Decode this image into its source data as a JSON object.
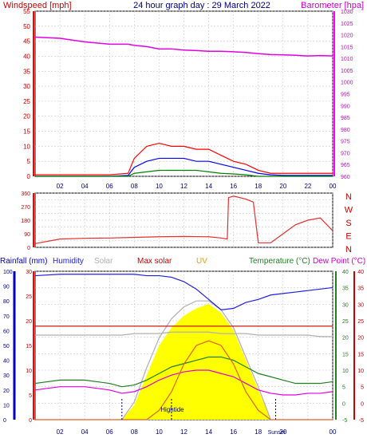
{
  "header": {
    "title": "24 hour graph day : 29 March 2022",
    "left_label": "Windspeed [mph]",
    "right_label": "Barometer [hpa]"
  },
  "colors": {
    "wind": "#ff0000",
    "gust": "#ff0000",
    "avgwind": "#0000ff",
    "lull": "#008000",
    "baro": "#e000e0",
    "direction": "#e03030",
    "rain": "#0000c0",
    "humidity": "#2020e0",
    "solar": "#b0b0b0",
    "maxsolar": "#cc0000",
    "uv": "#e8a000",
    "uvfill": "#ffff00",
    "temperature": "#208020",
    "dewpoint": "#e000e0",
    "grid": "#c0c0c0"
  },
  "x_ticks": [
    "02",
    "04",
    "06",
    "08",
    "10",
    "12",
    "14",
    "16",
    "18",
    "20",
    "22",
    "00"
  ],
  "chart_data": [
    {
      "type": "line",
      "name": "wind-barometer",
      "title": "24 hour graph day : 29 March 2022",
      "ylabel_left": "Windspeed [mph]",
      "ylabel_right": "Barometer [hpa]",
      "ylim_left": [
        0,
        55
      ],
      "ylim_right": [
        960,
        1030
      ],
      "left_ticks": [
        0,
        5,
        10,
        15,
        20,
        25,
        30,
        35,
        40,
        45,
        50,
        55
      ],
      "right_ticks": [
        960,
        965,
        970,
        975,
        980,
        985,
        990,
        995,
        1000,
        1005,
        1010,
        1015,
        1020,
        1025,
        1030
      ],
      "x_hours": [
        0,
        2,
        4,
        6,
        7.5,
        8,
        9,
        10,
        11,
        12,
        13,
        14,
        15,
        16,
        17,
        18,
        19,
        20,
        21,
        22,
        23,
        24
      ],
      "series": [
        {
          "key": "baro",
          "axis": "right",
          "values": [
            1019,
            1018.5,
            1017,
            1016,
            1016,
            1015.5,
            1015,
            1014,
            1014,
            1013.5,
            1013.3,
            1013,
            1013,
            1012.8,
            1012.5,
            1012,
            1011.6,
            1011.5,
            1011.3,
            1011,
            1011.2,
            1011
          ]
        },
        {
          "key": "gust",
          "axis": "left",
          "values": [
            0.5,
            0.5,
            0.5,
            0.5,
            1,
            6,
            10,
            11,
            10,
            10,
            9,
            9,
            7,
            5,
            4,
            2,
            1,
            1,
            1,
            1,
            1,
            1
          ]
        },
        {
          "key": "avgwind",
          "axis": "left",
          "values": [
            0,
            0,
            0,
            0,
            0.3,
            3,
            5,
            6,
            6,
            6,
            5,
            5,
            4,
            3,
            2,
            1,
            0.5,
            0.3,
            0.3,
            0.3,
            0.3,
            0.3
          ]
        },
        {
          "key": "lull",
          "axis": "left",
          "values": [
            0,
            0,
            0,
            0,
            0,
            1,
            1.5,
            2,
            2,
            2,
            2,
            1.5,
            1,
            0.8,
            0.5,
            0,
            0,
            0,
            0,
            0,
            0,
            0
          ]
        }
      ]
    },
    {
      "type": "line",
      "name": "wind-direction",
      "ylim": [
        0,
        360
      ],
      "left_ticks": [
        0,
        45,
        90,
        135,
        180,
        225,
        270,
        315,
        360
      ],
      "compass": [
        "N",
        "W",
        "S",
        "E",
        "N"
      ],
      "x_hours": [
        0,
        2,
        4,
        6,
        8,
        10,
        12,
        14,
        15,
        15.5,
        15.6,
        16,
        17,
        17.6,
        18,
        19,
        20,
        21,
        22,
        23,
        24
      ],
      "values": [
        25,
        55,
        60,
        62,
        66,
        70,
        72,
        70,
        62,
        55,
        330,
        340,
        320,
        300,
        30,
        30,
        90,
        150,
        180,
        195,
        110
      ]
    },
    {
      "type": "line",
      "name": "rain-humidity-solar-temperature",
      "legend": [
        "Rainfall (mm)",
        "Humidity",
        "Solar",
        "Max solar",
        "UV",
        "Temperature (°C)",
        "Dew Point (°C)"
      ],
      "humidity_ticks": [
        0,
        10,
        20,
        30,
        40,
        50,
        60,
        70,
        80,
        90,
        100
      ],
      "rain_ticks": [
        0,
        5,
        10,
        15,
        20,
        25,
        30
      ],
      "temp_ticks": [
        -5,
        0,
        5,
        10,
        15,
        20,
        25,
        30,
        35,
        40
      ],
      "ylim_humidity": [
        0,
        100
      ],
      "ylim_temp": [
        -5,
        40
      ],
      "annotations": [
        "Hightide",
        "Sunset"
      ],
      "x_hours": [
        0,
        2,
        4,
        6,
        7,
        8,
        9,
        10,
        11,
        12,
        13,
        14,
        15,
        16,
        17,
        18,
        19,
        20,
        21,
        22,
        23,
        24
      ],
      "series": [
        {
          "key": "humidity",
          "values": [
            97,
            98,
            98,
            98,
            98,
            98,
            97,
            97,
            96,
            93,
            88,
            81,
            74,
            75,
            79,
            81,
            84,
            85,
            86,
            87,
            88,
            89
          ]
        },
        {
          "key": "maxsolar_line",
          "values": [
            63,
            63,
            63,
            63,
            63,
            63,
            63,
            63,
            63,
            63,
            63,
            63,
            63,
            63,
            63,
            63,
            63,
            63,
            63,
            63,
            63,
            63
          ]
        },
        {
          "key": "solar_line",
          "values": [
            57,
            57,
            57,
            57,
            57,
            58,
            58,
            58,
            59,
            59,
            59,
            59,
            58,
            58,
            58,
            57,
            57,
            57,
            57,
            57,
            56,
            56
          ]
        },
        {
          "key": "temperature",
          "values": [
            6,
            7,
            7,
            6,
            5,
            5.5,
            7,
            9,
            11,
            12,
            13,
            14,
            14,
            13,
            11,
            9,
            8,
            7,
            6,
            6,
            6,
            6.5
          ]
        },
        {
          "key": "dewpoint",
          "values": [
            4,
            5,
            5,
            4,
            3,
            3.5,
            5,
            7,
            8.5,
            9.5,
            10,
            10,
            9,
            8,
            6,
            4,
            3,
            2.5,
            2.5,
            3,
            3,
            3.5
          ]
        },
        {
          "key": "uv",
          "values": [
            0,
            0,
            0,
            0,
            0,
            0,
            0,
            1,
            3,
            6,
            8,
            8.5,
            8,
            6,
            3,
            1,
            0,
            0,
            0,
            0,
            0,
            0
          ]
        }
      ],
      "solar_profile_hours": [
        7,
        8,
        9,
        10,
        11,
        12,
        13,
        14,
        15,
        16,
        17,
        18,
        19
      ],
      "solar_profile_values": [
        0,
        10,
        30,
        50,
        62,
        70,
        75,
        78,
        72,
        60,
        40,
        20,
        0
      ],
      "maxsolar_profile_values": [
        0,
        12,
        35,
        55,
        68,
        76,
        80,
        80,
        74,
        62,
        42,
        22,
        0
      ]
    }
  ]
}
